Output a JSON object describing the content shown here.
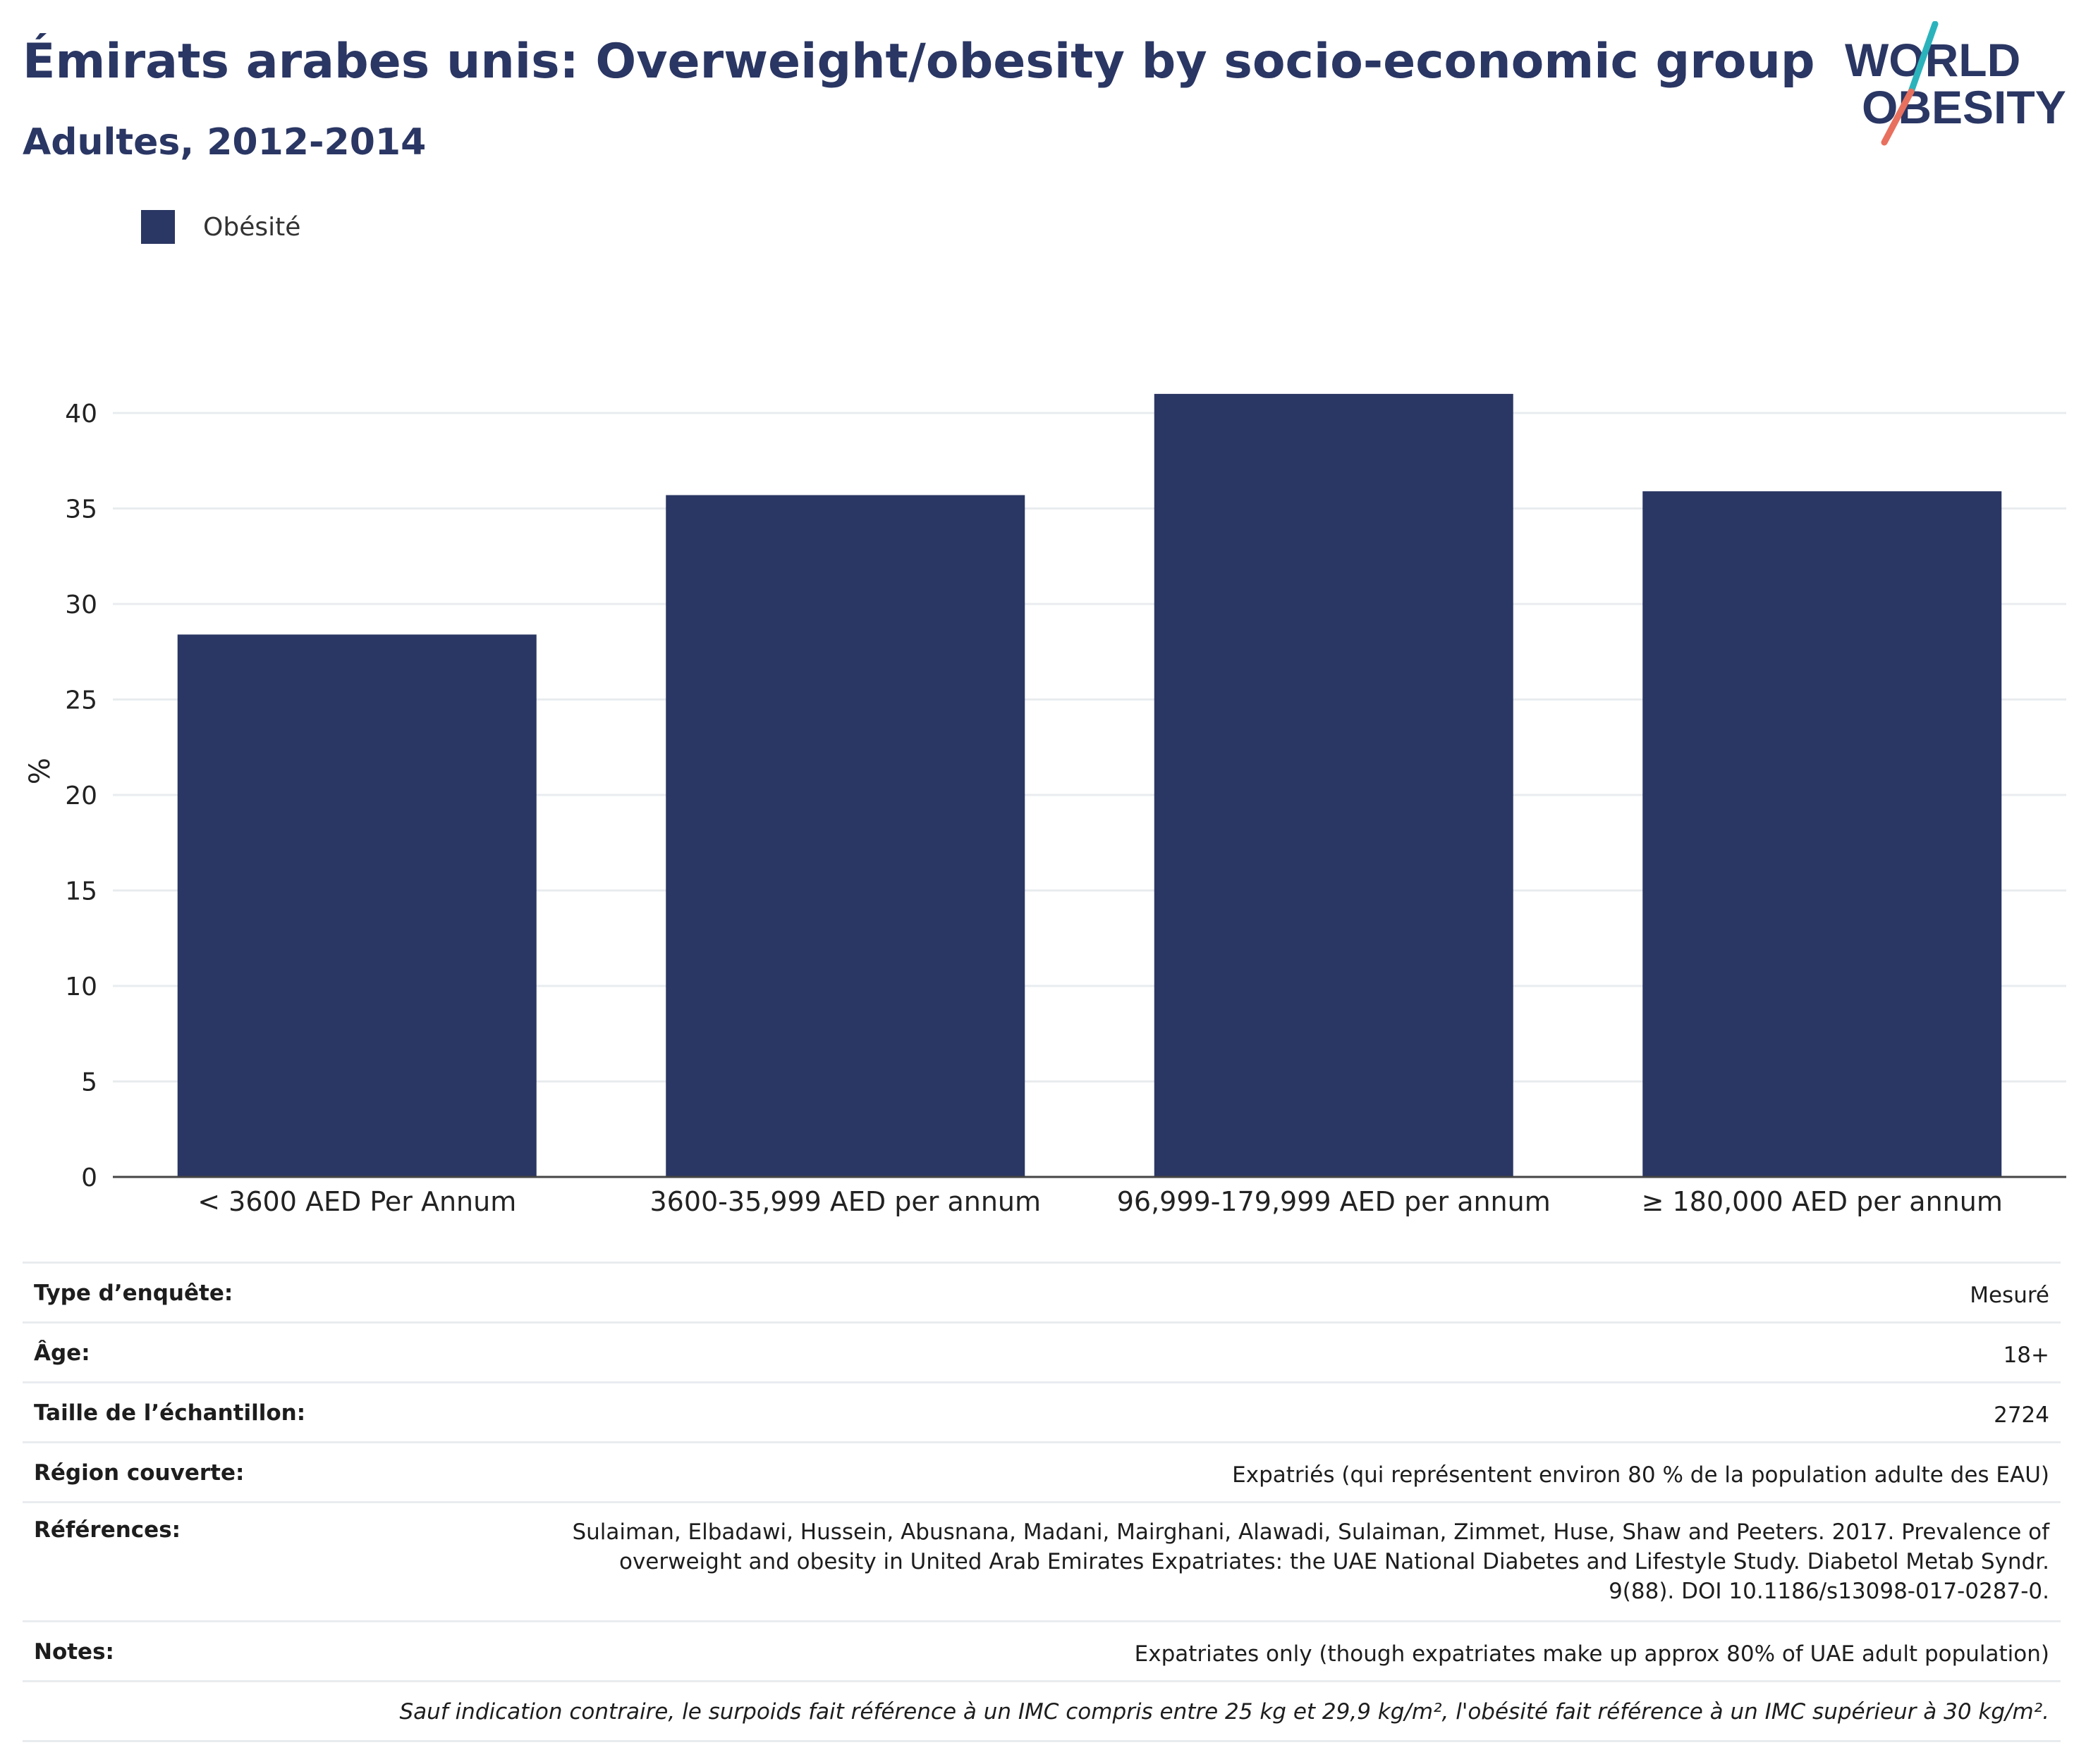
{
  "header": {
    "title": "Émirats arabes unis: Overweight/obesity by socio-economic group",
    "subtitle": "Adultes, 2012-2014"
  },
  "logo": {
    "line1": "WORLD",
    "line2": "OBESITY"
  },
  "chart_data": {
    "type": "bar",
    "categories": [
      "< 3600 AED Per Annum",
      "3600-35,999 AED per annum",
      "96,999-179,999 AED per annum",
      "≥ 180,000 AED per annum"
    ],
    "series": [
      {
        "name": "Obésité",
        "values": [
          28.4,
          35.7,
          41.0,
          35.9
        ],
        "color": "#2a3663"
      }
    ],
    "ylabel": "%",
    "ylim": [
      0,
      42.5
    ],
    "yticks": [
      0,
      5,
      10,
      15,
      20,
      25,
      30,
      35,
      40
    ],
    "grid": true,
    "legend_position": "top-left"
  },
  "info": {
    "rows": [
      {
        "label": "Type d’enquête:",
        "value": "Mesuré"
      },
      {
        "label": "Âge:",
        "value": "18+"
      },
      {
        "label": "Taille de l’échantillon:",
        "value": "2724"
      },
      {
        "label": "Région couverte:",
        "value": "Expatriés (qui représentent environ 80 % de la population adulte des EAU)"
      },
      {
        "label": "Références:",
        "value": "Sulaiman, Elbadawi, Hussein, Abusnana, Madani, Mairghani, Alawadi, Sulaiman, Zimmet, Huse, Shaw and Peeters. 2017. Prevalence of overweight and obesity in United Arab Emirates Expatriates: the UAE National Diabetes and Lifestyle Study. Diabetol Metab Syndr. 9(88). DOI 10.1186/s13098-017-0287-0."
      },
      {
        "label": "Notes:",
        "value": "Expatriates only (though expatriates make up approx 80% of UAE adult population)"
      }
    ],
    "footnote": "Sauf indication contraire, le surpoids fait référence à un IMC compris entre 25 kg et 29,9 kg/m², l'obésité fait référence à un IMC supérieur à 30 kg/m²."
  },
  "colors": {
    "brand_navy": "#2a3663",
    "logo_teal": "#2bb3bc",
    "logo_coral": "#e8705e"
  }
}
